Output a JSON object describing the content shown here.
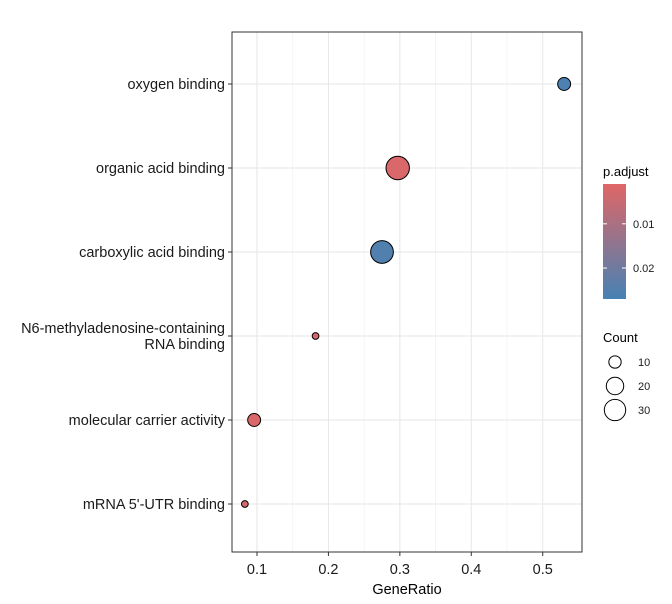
{
  "chart_data": {
    "type": "scatter",
    "xlabel": "GeneRatio",
    "ylabel": "",
    "xlim": [
      0.065,
      0.555
    ],
    "x_ticks": [
      "0.1",
      "0.2",
      "0.3",
      "0.4",
      "0.5"
    ],
    "grid": true,
    "categories": [
      "oxygen binding",
      "organic acid binding",
      "carboxylic acid binding",
      "N6-methyladenosine-containing RNA binding",
      "molecular carrier activity",
      "mRNA 5'-UTR binding"
    ],
    "points": [
      {
        "category": "oxygen binding",
        "x": 0.53,
        "count": 11,
        "p_adjust": 0.026
      },
      {
        "category": "organic acid binding",
        "x": 0.297,
        "count": 36,
        "p_adjust": 0.002
      },
      {
        "category": "carboxylic acid binding",
        "x": 0.275,
        "count": 34,
        "p_adjust": 0.025
      },
      {
        "category": "N6-methyladenosine-containing RNA binding",
        "x": 0.182,
        "count": 3,
        "p_adjust": 0.003
      },
      {
        "category": "molecular carrier activity",
        "x": 0.096,
        "count": 11,
        "p_adjust": 0.002
      },
      {
        "category": "mRNA 5'-UTR binding",
        "x": 0.083,
        "count": 3,
        "p_adjust": 0.004
      }
    ],
    "color_legend": {
      "title": "p.adjust",
      "ticks": [
        "0.01",
        "0.02"
      ],
      "low_color": "#e06666",
      "high_color": "#4682b4",
      "domain": [
        0.001,
        0.027
      ],
      "placement": "right"
    },
    "size_legend": {
      "title": "Count",
      "values": [
        10,
        20,
        30
      ],
      "labels": [
        "10",
        "20",
        "30"
      ],
      "placement": "right"
    }
  }
}
